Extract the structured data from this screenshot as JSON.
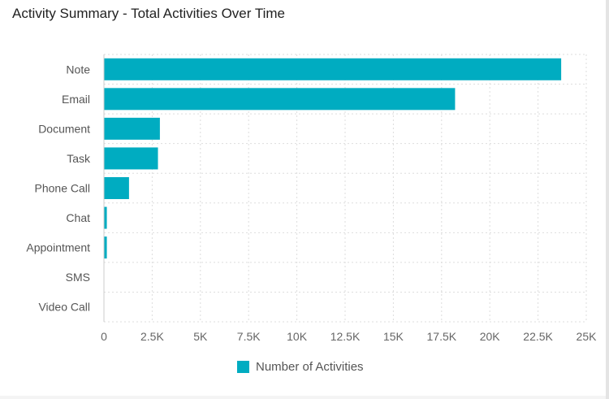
{
  "title": "Activity Summary - Total Activities Over Time",
  "chart_data": {
    "type": "bar",
    "orientation": "horizontal",
    "categories": [
      "Note",
      "Email",
      "Document",
      "Task",
      "Phone Call",
      "Chat",
      "Appointment",
      "SMS",
      "Video Call"
    ],
    "series": [
      {
        "name": "Number of Activities",
        "values": [
          23700,
          18200,
          2900,
          2800,
          1300,
          150,
          150,
          0,
          0
        ],
        "color": "#00acc1"
      }
    ],
    "x_ticks": [
      "0",
      "2.5K",
      "5K",
      "7.5K",
      "10K",
      "12.5K",
      "15K",
      "17.5K",
      "20K",
      "22.5K",
      "25K"
    ],
    "xlim": [
      0,
      25000
    ],
    "grid": true,
    "legend_position": "bottom-center"
  }
}
